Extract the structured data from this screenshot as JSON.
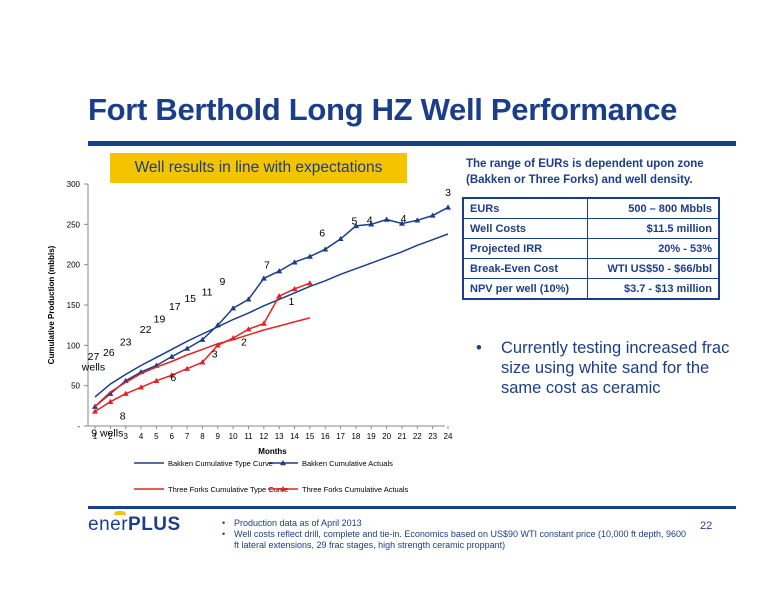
{
  "slide": {
    "title": "Fort Berthold Long HZ Well Performance",
    "callout": "Well results in line with expectations",
    "eur_note": "The range of EURs is dependent upon zone (Bakken or Three Forks) and well density.",
    "page_number": "22",
    "logo": {
      "part1": "ener",
      "part2": "PLUS"
    },
    "colors": {
      "brand_blue": "#1b3e8a",
      "callout_yellow": "#f5c400",
      "three_forks_red": "#e52222"
    }
  },
  "metrics": [
    {
      "label": "EURs",
      "value": "500 – 800 Mbbls"
    },
    {
      "label": "Well Costs",
      "value": "$11.5 million"
    },
    {
      "label": "Projected IRR",
      "value": "20% - 53%"
    },
    {
      "label": "Break-Even Cost",
      "value": "WTI US$50 - $66/bbl"
    },
    {
      "label": "NPV per well (10%)",
      "value": "$3.7 - $13 million"
    }
  ],
  "bullet": {
    "symbol": "•",
    "text": "Currently testing increased frac size using white sand for the same cost as ceramic"
  },
  "footnotes": [
    {
      "symbol": "•",
      "text": "Production data as of April 2013"
    },
    {
      "symbol": "•",
      "text": "Well costs reflect drill, complete and tie-in.  Economics based on US$90 WTI constant price (10,000 ft depth, 9600 ft lateral extensions, 29 frac stages, high strength ceramic proppant)"
    }
  ],
  "chart_data": {
    "type": "line",
    "xlabel": "Months",
    "ylabel": "Cumulative Production (mbbls)",
    "xlim": [
      1,
      24
    ],
    "ylim": [
      0,
      300
    ],
    "x_ticks": [
      "1",
      "2",
      "3",
      "4",
      "5",
      "6",
      "7",
      "8",
      "9",
      "10",
      "11",
      "12",
      "13",
      "14",
      "15",
      "16",
      "17",
      "18",
      "19",
      "20",
      "21",
      "22",
      "23",
      "24"
    ],
    "y_ticks": [
      {
        "value": 0,
        "label": "-"
      },
      {
        "value": 50,
        "label": "50"
      },
      {
        "value": 100,
        "label": "100"
      },
      {
        "value": 150,
        "label": "150"
      },
      {
        "value": 200,
        "label": "200"
      },
      {
        "value": 250,
        "label": "250"
      },
      {
        "value": 300,
        "label": "300"
      }
    ],
    "grid": false,
    "legend_position": "bottom",
    "series": [
      {
        "name": "Bakken Cumulative Type Curve",
        "color": "#1b3e8a",
        "marker": "none",
        "x": [
          1,
          2,
          3,
          4,
          5,
          6,
          7,
          8,
          9,
          10,
          11,
          12,
          13,
          14,
          15,
          16,
          17,
          18,
          19,
          20,
          21,
          22,
          23,
          24
        ],
        "y": [
          36,
          52,
          64,
          75,
          85,
          95,
          105,
          114,
          123,
          132,
          140,
          149,
          157,
          165,
          173,
          180,
          188,
          195,
          202,
          209,
          216,
          224,
          231,
          238
        ]
      },
      {
        "name": "Bakken Cumulative Actuals",
        "color": "#1b3e8a",
        "marker": "triangle",
        "x": [
          1,
          2,
          3,
          4,
          5,
          6,
          7,
          8,
          9,
          10,
          11,
          12,
          13,
          14,
          15,
          16,
          17,
          18,
          19,
          20,
          21,
          22,
          23,
          24
        ],
        "y": [
          24,
          40,
          56,
          67,
          75,
          86,
          96,
          107,
          125,
          146,
          157,
          183,
          192,
          203,
          210,
          219,
          232,
          248,
          250,
          256,
          251,
          255,
          261,
          271
        ]
      },
      {
        "name": "Three Forks Cumulative Type Curve",
        "color": "#e52222",
        "marker": "none",
        "x": [
          1,
          2,
          3,
          4,
          5,
          6,
          7,
          8,
          9,
          10,
          11,
          12,
          13,
          14,
          15
        ],
        "y": [
          24,
          42,
          54,
          65,
          73,
          80,
          88,
          95,
          102,
          107,
          113,
          119,
          124,
          129,
          134
        ]
      },
      {
        "name": "Three Forks Cumulative Actuals",
        "color": "#e52222",
        "marker": "triangle",
        "x": [
          1,
          2,
          3,
          4,
          5,
          6,
          7,
          8,
          9,
          10,
          11,
          12,
          13,
          14,
          15
        ],
        "y": [
          18,
          30,
          40,
          48,
          56,
          63,
          71,
          79,
          100,
          109,
          120,
          127,
          161,
          170,
          177
        ]
      }
    ],
    "annotations": [
      {
        "text": "9 wells",
        "x": 1.8,
        "y": -13
      },
      {
        "text": "8",
        "x": 2.8,
        "y": 8
      },
      {
        "text": "27",
        "x": 0.9,
        "y": 82
      },
      {
        "text": "wells",
        "x": 0.9,
        "y": 69
      },
      {
        "text": "26",
        "x": 1.9,
        "y": 87
      },
      {
        "text": "23",
        "x": 3.0,
        "y": 100
      },
      {
        "text": "22",
        "x": 4.3,
        "y": 115
      },
      {
        "text": "19",
        "x": 5.2,
        "y": 128
      },
      {
        "text": "17",
        "x": 6.2,
        "y": 144
      },
      {
        "text": "15",
        "x": 7.2,
        "y": 154
      },
      {
        "text": "11",
        "x": 8.3,
        "y": 162
      },
      {
        "text": "9",
        "x": 9.3,
        "y": 175
      },
      {
        "text": "7",
        "x": 12.2,
        "y": 195
      },
      {
        "text": "6",
        "x": 15.8,
        "y": 235
      },
      {
        "text": "5",
        "x": 17.9,
        "y": 250
      },
      {
        "text": "4",
        "x": 18.9,
        "y": 251
      },
      {
        "text": "4",
        "x": 21.1,
        "y": 253
      },
      {
        "text": "3",
        "x": 24.0,
        "y": 285
      },
      {
        "text": "6",
        "x": 6.1,
        "y": 56
      },
      {
        "text": "3",
        "x": 8.8,
        "y": 85
      },
      {
        "text": "2",
        "x": 10.7,
        "y": 100
      },
      {
        "text": "1",
        "x": 13.8,
        "y": 150
      }
    ]
  }
}
